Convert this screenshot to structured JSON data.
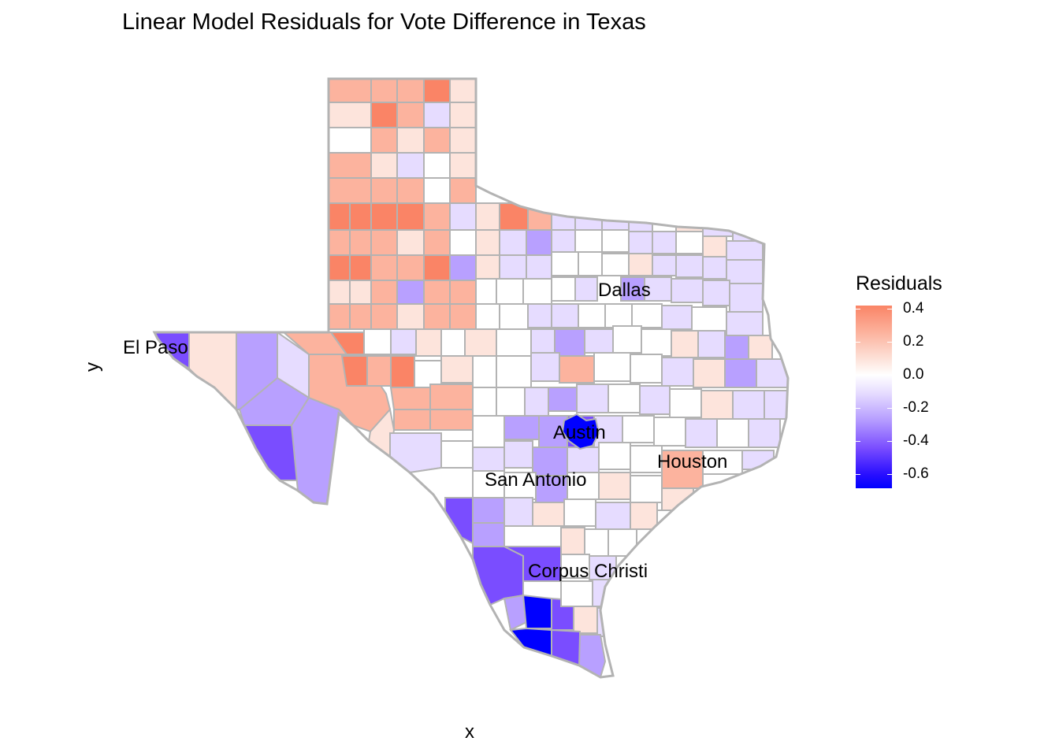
{
  "title": "Linear Model Residuals for Vote Difference in Texas",
  "axes": {
    "x_label": "x",
    "y_label": "y"
  },
  "legend": {
    "title": "Residuals",
    "breaks": [
      "0.4",
      "0.2",
      "0.0",
      "-0.2",
      "-0.4",
      "-0.6"
    ],
    "limits": [
      -0.66,
      0.44
    ],
    "colors": {
      "high": "#fa8466",
      "mid": "#ffffff",
      "low": "#0000ff"
    }
  },
  "cities": [
    {
      "name": "Dallas"
    },
    {
      "name": "El Paso"
    },
    {
      "name": "Austin"
    },
    {
      "name": "Houston"
    },
    {
      "name": "San Antonio"
    },
    {
      "name": "Corpus Christi"
    }
  ],
  "chart_data": {
    "type": "heatmap",
    "title": "Linear Model Residuals for Vote Difference in Texas",
    "xlabel": "x",
    "ylabel": "y",
    "fill_variable": "Residuals",
    "fill_range": [
      -0.66,
      0.44
    ],
    "county_fill_palette": [
      "#fa8466",
      "#fcb39e",
      "#fde4dc",
      "#ffffff",
      "#e6dcff",
      "#b8a0ff",
      "#7a4dff",
      "#0000ff"
    ]
  }
}
